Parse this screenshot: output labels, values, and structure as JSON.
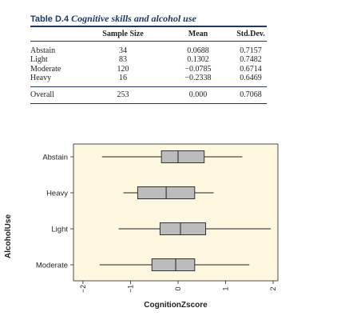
{
  "table": {
    "label": "Table D.4",
    "caption": "Cognitive skills and alcohol use",
    "columns": [
      "",
      "Sample Size",
      "Mean",
      "Std.Dev."
    ],
    "rows": [
      [
        "Abstain",
        "34",
        "0.0688",
        "0.7157"
      ],
      [
        "Light",
        "83",
        "0.1302",
        "0.7482"
      ],
      [
        "Moderate",
        "120",
        "−0.0785",
        "0.6714"
      ],
      [
        "Heavy",
        "16",
        "−0.2338",
        "0.6469"
      ]
    ],
    "overall": [
      "Overall",
      "253",
      "0.000",
      "0.7068"
    ]
  },
  "chart_data": {
    "type": "boxplot",
    "xlabel": "CognitionZscore",
    "ylabel": "AlcoholUse",
    "xlim": [
      -2.2,
      2.1
    ],
    "xticks": [
      -2,
      -1,
      0,
      1,
      2
    ],
    "categories": [
      "Abstain",
      "Heavy",
      "Light",
      "Moderate"
    ],
    "boxes": [
      {
        "category": "Abstain",
        "min": -1.6,
        "q1": -0.35,
        "median": 0.0,
        "q3": 0.55,
        "max": 1.35
      },
      {
        "category": "Heavy",
        "min": -1.15,
        "q1": -0.85,
        "median": -0.25,
        "q3": 0.35,
        "max": 0.75
      },
      {
        "category": "Light",
        "min": -1.25,
        "q1": -0.38,
        "median": 0.05,
        "q3": 0.58,
        "max": 1.95
      },
      {
        "category": "Moderate",
        "min": -1.65,
        "q1": -0.55,
        "median": -0.05,
        "q3": 0.35,
        "max": 1.5
      }
    ],
    "colors": {
      "panel": "#fdf7e0",
      "box": "#bcbcbc",
      "stroke": "#222222"
    },
    "grid": false
  }
}
